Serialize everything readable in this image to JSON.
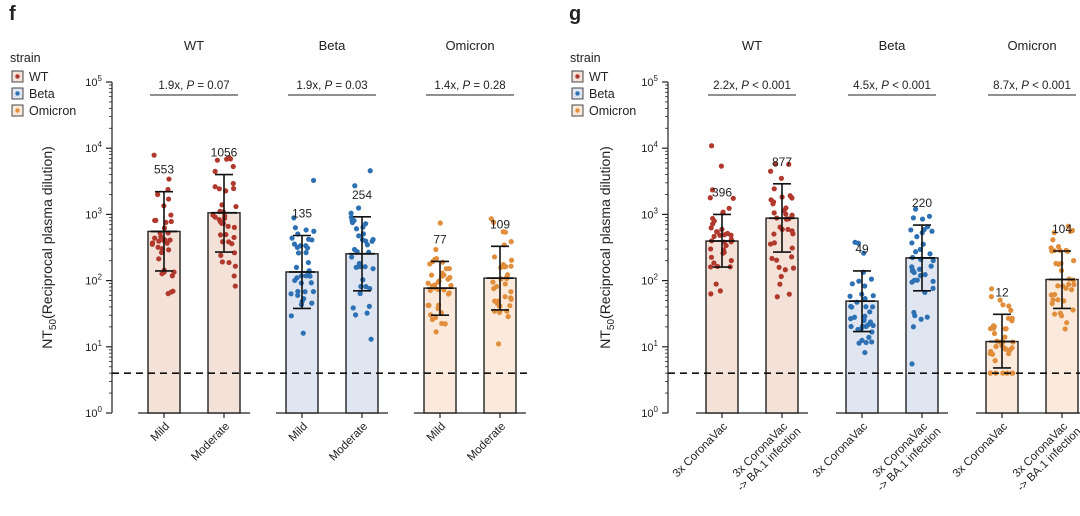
{
  "chart_data": [
    {
      "panel": "f",
      "type": "bar",
      "ylabel": "NT50(Reciprocal plasma dilution)",
      "yscale": "log",
      "ylim": [
        1,
        100000
      ],
      "yticks": [
        "10^0",
        "10^1",
        "10^2",
        "10^3",
        "10^4",
        "10^5"
      ],
      "detection_limit": 4,
      "legend": {
        "title": "strain",
        "entries": [
          "WT",
          "Beta",
          "Omicron"
        ],
        "position": "top-left"
      },
      "groups": [
        {
          "title": "WT",
          "comparison": "1.9x, P = 0.07",
          "bars": [
            {
              "category": "Mild",
              "value": 553,
              "label": "553",
              "err_low": 140,
              "err_high": 2200,
              "strain": "WT"
            },
            {
              "category": "Moderate",
              "value": 1056,
              "label": "1056",
              "err_low": 270,
              "err_high": 4000,
              "strain": "WT"
            }
          ]
        },
        {
          "title": "Beta",
          "comparison": "1.9x, P = 0.03",
          "bars": [
            {
              "category": "Mild",
              "value": 135,
              "label": "135",
              "err_low": 38,
              "err_high": 480,
              "strain": "Beta"
            },
            {
              "category": "Moderate",
              "value": 254,
              "label": "254",
              "err_low": 70,
              "err_high": 920,
              "strain": "Beta"
            }
          ]
        },
        {
          "title": "Omicron",
          "comparison": "1.4x, P = 0.28",
          "bars": [
            {
              "category": "Mild",
              "value": 77,
              "label": "77",
              "err_low": 30,
              "err_high": 195,
              "strain": "Omicron"
            },
            {
              "category": "Moderate",
              "value": 109,
              "label": "109",
              "err_low": 36,
              "err_high": 330,
              "strain": "Omicron"
            }
          ]
        }
      ]
    },
    {
      "panel": "g",
      "type": "bar",
      "ylabel": "NT50(Reciprocal plasma dilution)",
      "yscale": "log",
      "ylim": [
        1,
        100000
      ],
      "yticks": [
        "10^0",
        "10^1",
        "10^2",
        "10^3",
        "10^4",
        "10^5"
      ],
      "detection_limit": 4,
      "legend": {
        "title": "strain",
        "entries": [
          "WT",
          "Beta",
          "Omicron"
        ],
        "position": "top-left"
      },
      "groups": [
        {
          "title": "WT",
          "comparison": "2.2x, P < 0.001",
          "bars": [
            {
              "category": "3x CoronaVac",
              "value": 396,
              "label": "396",
              "err_low": 160,
              "err_high": 1000,
              "strain": "WT"
            },
            {
              "category": "3x CoronaVac -> BA.1 infection",
              "value": 877,
              "label": "877",
              "err_low": 270,
              "err_high": 2900,
              "strain": "WT"
            }
          ]
        },
        {
          "title": "Beta",
          "comparison": "4.5x, P < 0.001",
          "bars": [
            {
              "category": "3x CoronaVac",
              "value": 49,
              "label": "49",
              "err_low": 17,
              "err_high": 140,
              "strain": "Beta"
            },
            {
              "category": "3x CoronaVac -> BA.1 infection",
              "value": 220,
              "label": "220",
              "err_low": 70,
              "err_high": 690,
              "strain": "Beta"
            }
          ]
        },
        {
          "title": "Omicron",
          "comparison": "8.7x, P < 0.001",
          "bars": [
            {
              "category": "3x CoronaVac",
              "value": 12,
              "label": "12",
              "err_low": 4.8,
              "err_high": 31,
              "strain": "Omicron"
            },
            {
              "category": "3x CoronaVac -> BA.1 infection",
              "value": 104,
              "label": "104",
              "err_low": 38,
              "err_high": 280,
              "strain": "Omicron"
            }
          ]
        }
      ]
    }
  ],
  "colors": {
    "WT": {
      "fill": "#f4e1d8",
      "dot": "#b0382c"
    },
    "Beta": {
      "fill": "#dfe6f1",
      "dot": "#2d70b3"
    },
    "Omicron": {
      "fill": "#fbeadb",
      "dot": "#e08d3c"
    }
  }
}
